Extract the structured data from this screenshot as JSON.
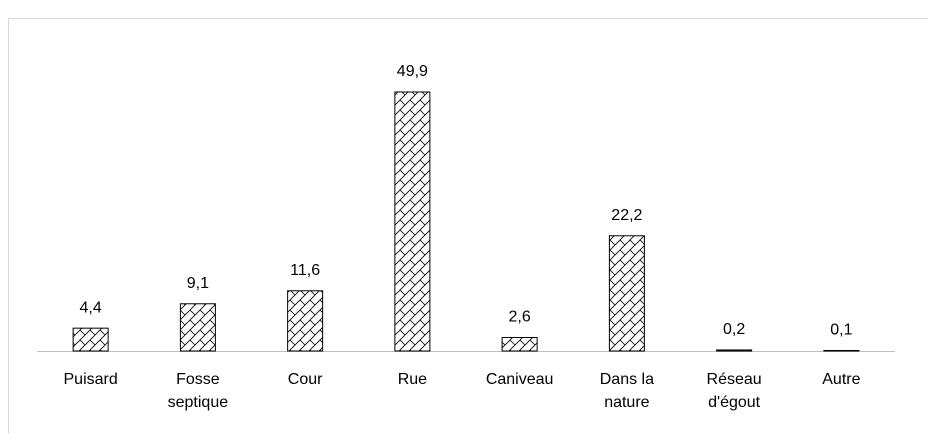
{
  "chart_data": {
    "type": "bar",
    "categories": [
      "Puisard",
      "Fosse septique",
      "Cour",
      "Rue",
      "Caniveau",
      "Dans la nature",
      "Réseau d'égout",
      "Autre"
    ],
    "values": [
      4.4,
      9.1,
      11.6,
      49.9,
      2.6,
      22.2,
      0.2,
      0.1
    ],
    "value_labels": [
      "4,4",
      "9,1",
      "11,6",
      "49,9",
      "2,6",
      "22,2",
      "0,2",
      "0,1"
    ],
    "color": "#000000"
  }
}
